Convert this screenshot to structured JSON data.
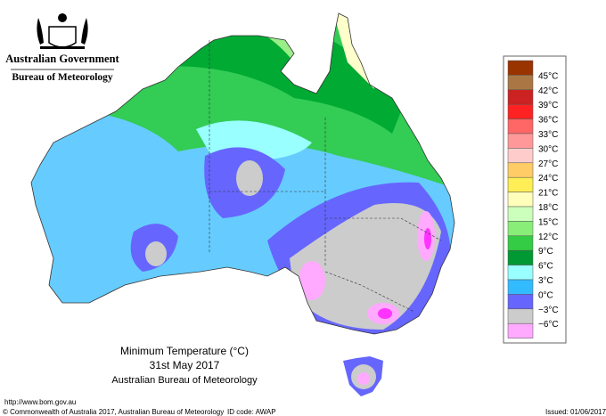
{
  "header": {
    "title": "Australian Government",
    "subtitle": "Bureau of Meteorology"
  },
  "legend": {
    "labels": [
      "45°C",
      "42°C",
      "39°C",
      "36°C",
      "33°C",
      "30°C",
      "27°C",
      "24°C",
      "21°C",
      "18°C",
      "15°C",
      "12°C",
      "9°C",
      "6°C",
      "3°C",
      "0°C",
      "−3°C",
      "−6°C"
    ]
  },
  "caption": {
    "title": "Minimum Temperature (°C)",
    "date": "31st May 2017",
    "source": "Australian Bureau of Meteorology"
  },
  "footer": {
    "url": "http://www.bom.gov.au",
    "copyright": "© Commonwealth of Australia 2017, Australian Bureau of Meteorology",
    "id_code": "ID code: AWAP",
    "issued": "Issued: 01/06/2017"
  }
}
